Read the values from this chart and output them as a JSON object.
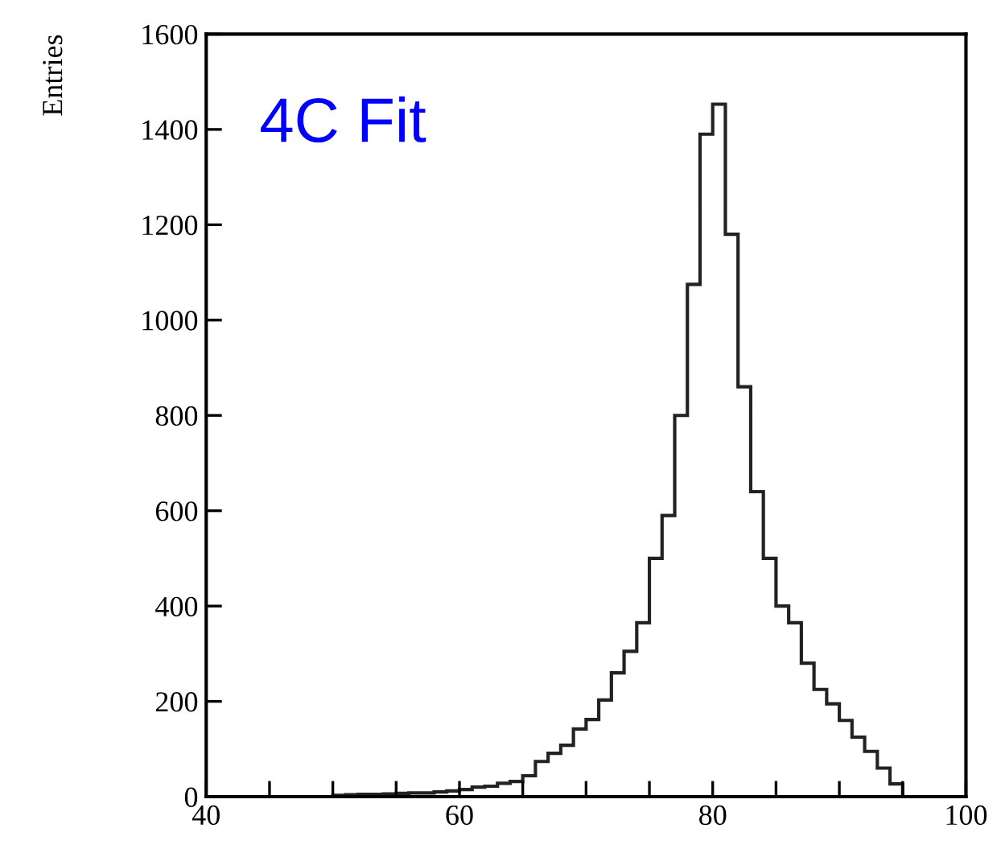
{
  "chart_data": {
    "type": "histogram",
    "ylabel": "Entries",
    "annotations": [
      "4C Fit"
    ],
    "bins": [
      50,
      51,
      52,
      53,
      54,
      55,
      56,
      57,
      58,
      59,
      60,
      61,
      62,
      63,
      64,
      65,
      66,
      67,
      68,
      69,
      70,
      71,
      72,
      73,
      74,
      75,
      76,
      77,
      78,
      79,
      80,
      81,
      82,
      83,
      84,
      85,
      86,
      87,
      88,
      89,
      90,
      91,
      92,
      93,
      94,
      95
    ],
    "values": [
      3,
      4,
      5,
      5,
      6,
      7,
      8,
      8,
      10,
      12,
      15,
      20,
      22,
      28,
      32,
      44,
      74,
      91,
      108,
      142,
      162,
      203,
      260,
      305,
      365,
      500,
      590,
      800,
      1075,
      1390,
      1453,
      1180,
      860,
      640,
      500,
      400,
      365,
      280,
      225,
      195,
      160,
      125,
      95,
      60,
      27
    ],
    "color": "#222222",
    "xlim": [
      40,
      100
    ],
    "xticks": [
      40,
      {
        "value": 45,
        "label": null
      },
      {
        "value": 50,
        "label": null
      },
      {
        "value": 55,
        "label": null
      },
      60,
      {
        "value": 65,
        "label": null
      },
      {
        "value": 70,
        "label": null
      },
      {
        "value": 75,
        "label": null
      },
      80,
      {
        "value": 85,
        "label": null
      },
      {
        "value": 90,
        "label": null
      },
      {
        "value": 95,
        "label": null
      },
      100
    ],
    "ylim": [
      0,
      1600
    ],
    "yticks": [
      0,
      200,
      400,
      600,
      800,
      1000,
      1200,
      1400,
      1600
    ],
    "grid": false,
    "legend": false
  }
}
